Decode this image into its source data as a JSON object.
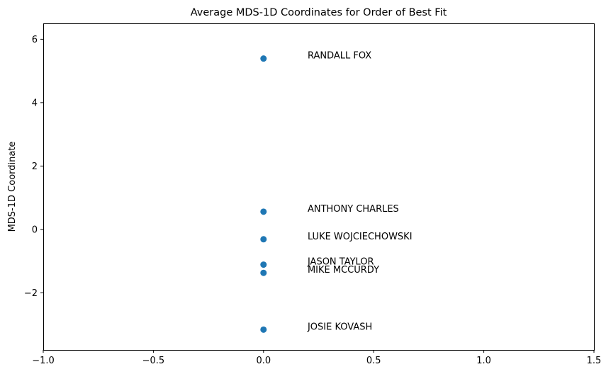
{
  "chart_data": {
    "type": "scatter",
    "title": "Average MDS-1D Coordinates for Order of Best Fit",
    "xlabel": "",
    "ylabel": "MDS-1D Coordinate",
    "xlim": [
      -1.0,
      1.5
    ],
    "ylim": [
      -3.8,
      6.5
    ],
    "x_ticks": [
      {
        "value": -1.0,
        "label": "−1.0"
      },
      {
        "value": -0.5,
        "label": "−0.5"
      },
      {
        "value": 0.0,
        "label": "0.0"
      },
      {
        "value": 0.5,
        "label": "0.5"
      },
      {
        "value": 1.0,
        "label": "1.0"
      },
      {
        "value": 1.5,
        "label": "1.5"
      }
    ],
    "y_ticks": [
      {
        "value": -2,
        "label": "−2"
      },
      {
        "value": 0,
        "label": "0"
      },
      {
        "value": 2,
        "label": "2"
      },
      {
        "value": 4,
        "label": "4"
      },
      {
        "value": 6,
        "label": "6"
      }
    ],
    "grid": false,
    "marker_color": "#1f77b4",
    "points": [
      {
        "name": "RANDALL FOX",
        "x": 0.0,
        "y": 5.39
      },
      {
        "name": "ANTHONY CHARLES",
        "x": 0.0,
        "y": 0.56
      },
      {
        "name": "LUKE WOJCIECHOWSKI",
        "x": 0.0,
        "y": -0.31
      },
      {
        "name": "JASON TAYLOR",
        "x": 0.0,
        "y": -1.11
      },
      {
        "name": "MIKE MCCURDY",
        "x": 0.0,
        "y": -1.37
      },
      {
        "name": "JOSIE KOVASH",
        "x": 0.0,
        "y": -3.16
      }
    ],
    "annotations": [
      {
        "text": "RANDALL FOX",
        "x": 0.2,
        "y": 5.39
      },
      {
        "text": "ANTHONY CHARLES",
        "x": 0.2,
        "y": 0.56
      },
      {
        "text": "LUKE WOJCIECHOWSKI",
        "x": 0.2,
        "y": -0.31
      },
      {
        "text": "JASON TAYLOR",
        "x": 0.2,
        "y": -1.11
      },
      {
        "text": "MIKE MCCURDY",
        "x": 0.2,
        "y": -1.37
      },
      {
        "text": "JOSIE KOVASH",
        "x": 0.2,
        "y": -3.16
      }
    ]
  }
}
